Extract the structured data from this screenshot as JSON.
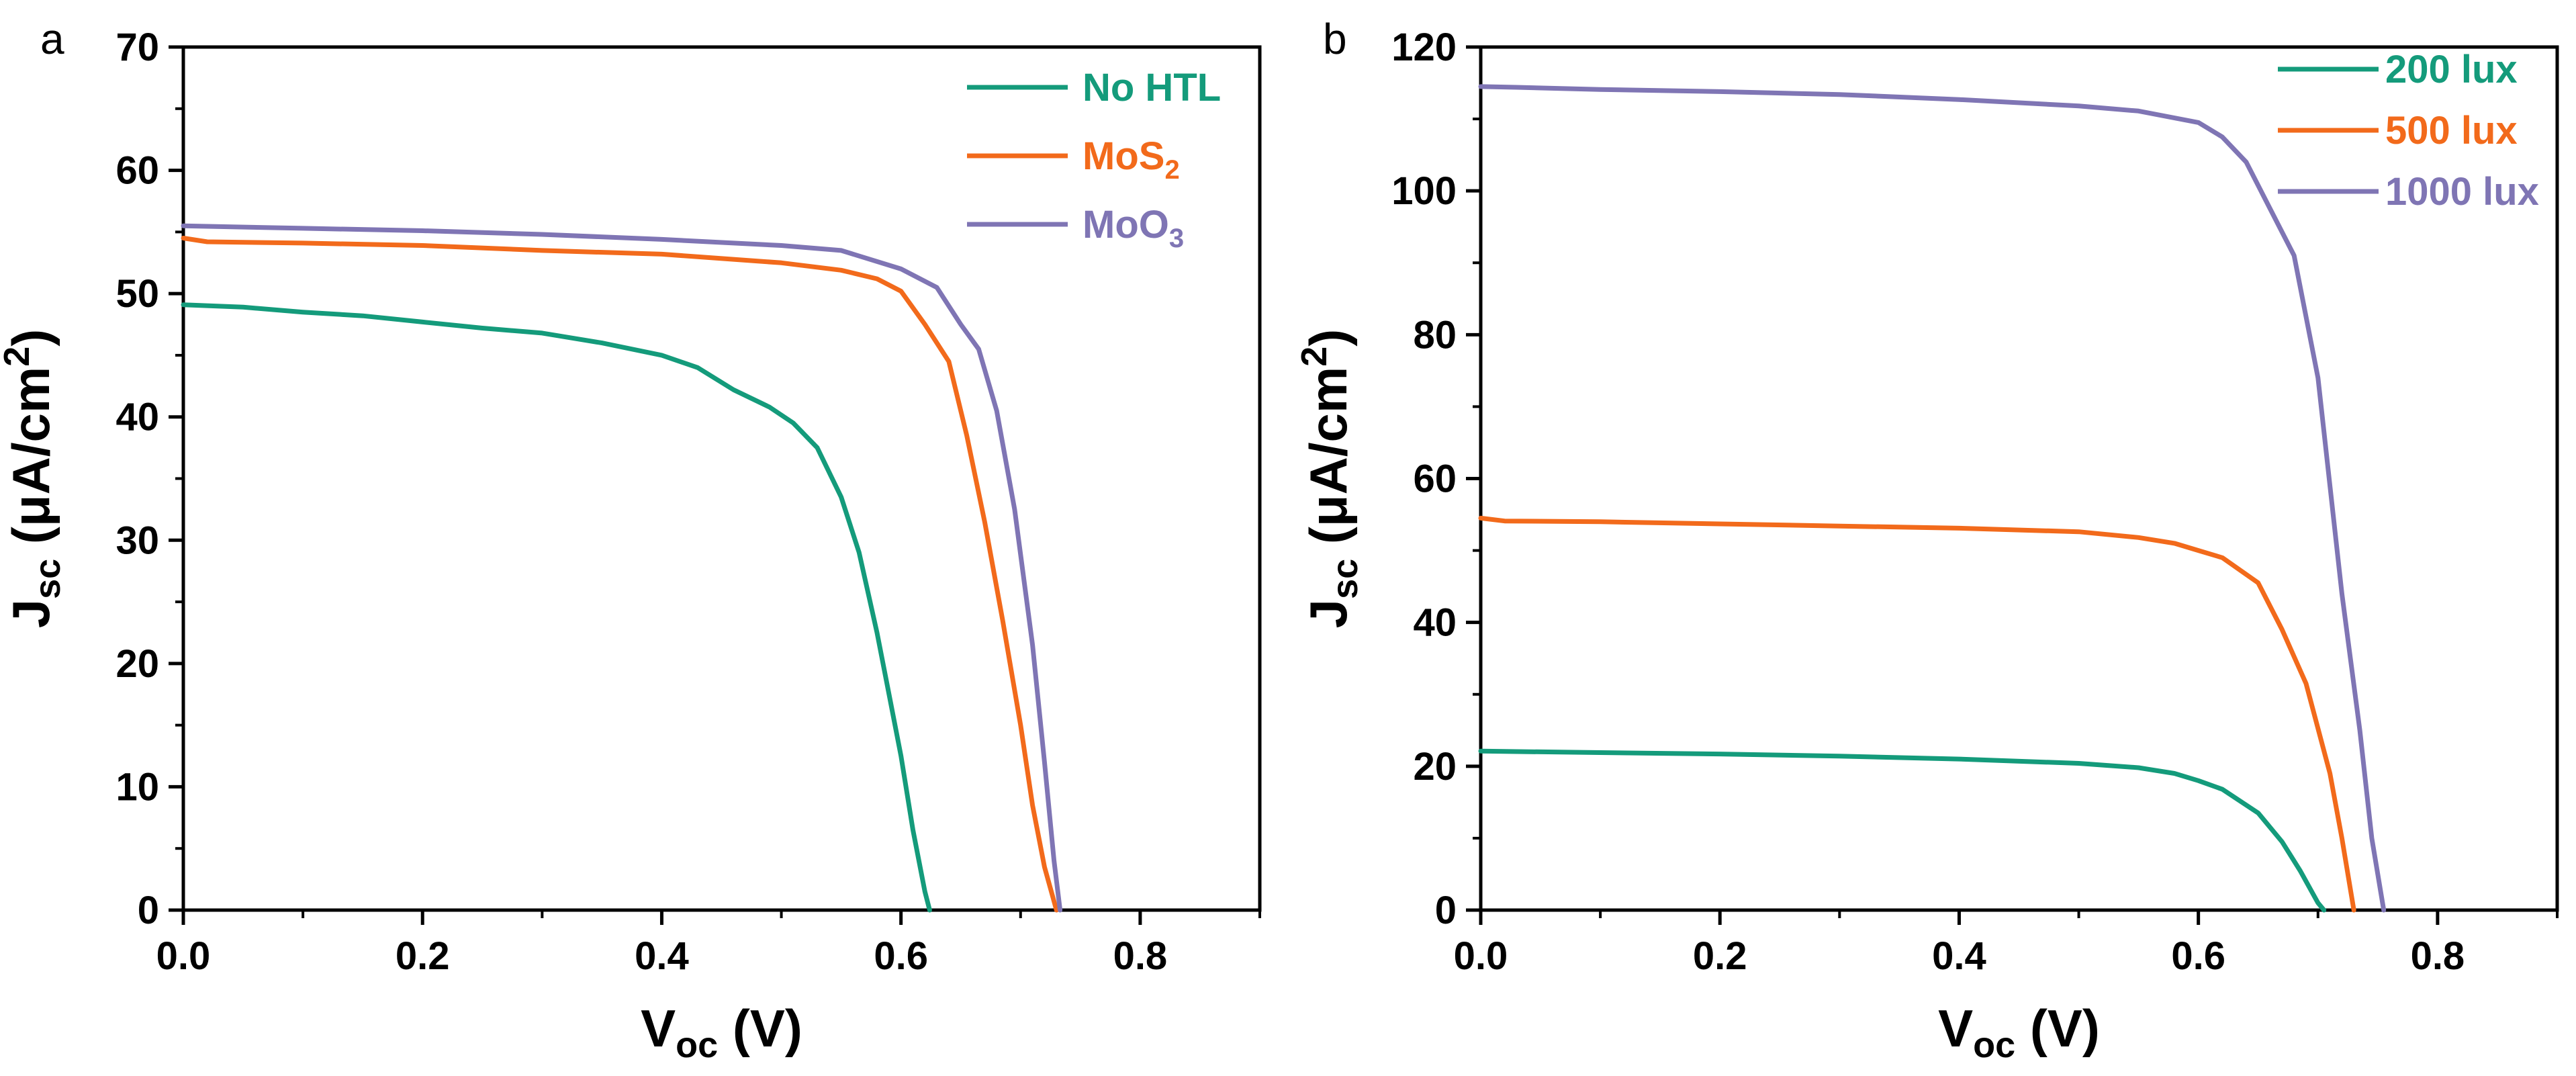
{
  "chart_data": [
    {
      "type": "line",
      "panel_label": "a",
      "xlabel": {
        "main": "V",
        "sub": "oc",
        "rest": " (V)"
      },
      "ylabel": {
        "main": "J",
        "sub": "sc",
        "rest": " (μA/cm",
        "sup": "2",
        "end": ")"
      },
      "xlim": [
        0,
        0.9
      ],
      "ylim": [
        0,
        70
      ],
      "xticks": [
        "0.0",
        "0.2",
        "0.4",
        "0.6",
        "0.8"
      ],
      "yticks": [
        "0",
        "10",
        "20",
        "30",
        "40",
        "50",
        "60",
        "70"
      ],
      "legend_position": "top-right",
      "series": [
        {
          "name": "No HTL",
          "name_sub": "",
          "color": "#149b7b",
          "x": [
            0,
            0.05,
            0.1,
            0.15,
            0.2,
            0.25,
            0.3,
            0.35,
            0.4,
            0.43,
            0.46,
            0.49,
            0.51,
            0.53,
            0.55,
            0.565,
            0.58,
            0.59,
            0.6,
            0.61,
            0.62,
            0.624
          ],
          "y": [
            49.1,
            48.9,
            48.5,
            48.2,
            47.7,
            47.2,
            46.8,
            46.0,
            45.0,
            44.0,
            42.2,
            40.8,
            39.5,
            37.5,
            33.5,
            29.0,
            22.5,
            17.5,
            12.5,
            6.5,
            1.5,
            0
          ]
        },
        {
          "name": "MoS",
          "name_sub": "2",
          "color": "#f26a1b",
          "x": [
            0,
            0.02,
            0.1,
            0.2,
            0.3,
            0.4,
            0.5,
            0.55,
            0.58,
            0.6,
            0.62,
            0.64,
            0.655,
            0.67,
            0.685,
            0.7,
            0.71,
            0.72,
            0.73
          ],
          "y": [
            54.5,
            54.2,
            54.1,
            53.9,
            53.5,
            53.2,
            52.5,
            51.9,
            51.2,
            50.2,
            47.5,
            44.5,
            38.5,
            31.5,
            23.5,
            15.0,
            8.5,
            3.5,
            0
          ]
        },
        {
          "name": "MoO",
          "name_sub": "3",
          "color": "#7f75b4",
          "x": [
            0,
            0.1,
            0.2,
            0.3,
            0.4,
            0.5,
            0.55,
            0.6,
            0.63,
            0.65,
            0.665,
            0.68,
            0.695,
            0.71,
            0.72,
            0.728,
            0.733
          ],
          "y": [
            55.5,
            55.3,
            55.1,
            54.8,
            54.4,
            53.9,
            53.5,
            52.0,
            50.5,
            47.5,
            45.5,
            40.5,
            32.5,
            21.5,
            12.0,
            4.0,
            0
          ]
        }
      ]
    },
    {
      "type": "line",
      "panel_label": "b",
      "xlabel": {
        "main": "V",
        "sub": "oc",
        "rest": " (V)"
      },
      "ylabel": {
        "main": "J",
        "sub": "sc",
        "rest": " (μA/cm",
        "sup": "2",
        "end": ")"
      },
      "xlim": [
        0,
        0.9
      ],
      "ylim": [
        0,
        120
      ],
      "xticks": [
        "0.0",
        "0.2",
        "0.4",
        "0.6",
        "0.8"
      ],
      "yticks": [
        "0",
        "20",
        "40",
        "60",
        "80",
        "100",
        "120"
      ],
      "legend_position": "top-right",
      "series": [
        {
          "name": "200 lux",
          "name_sub": "",
          "color": "#149b7b",
          "x": [
            0,
            0.1,
            0.2,
            0.3,
            0.4,
            0.5,
            0.55,
            0.58,
            0.6,
            0.62,
            0.65,
            0.67,
            0.685,
            0.7,
            0.705
          ],
          "y": [
            22.1,
            21.9,
            21.7,
            21.4,
            21.0,
            20.4,
            19.8,
            19.0,
            18.0,
            16.8,
            13.5,
            9.5,
            5.5,
            1.0,
            0
          ]
        },
        {
          "name": "500 lux",
          "name_sub": "",
          "color": "#f26a1b",
          "x": [
            0,
            0.02,
            0.1,
            0.2,
            0.3,
            0.4,
            0.5,
            0.55,
            0.58,
            0.6,
            0.62,
            0.65,
            0.67,
            0.69,
            0.71,
            0.72,
            0.73
          ],
          "y": [
            54.5,
            54.1,
            54.0,
            53.7,
            53.4,
            53.1,
            52.6,
            51.8,
            51.0,
            50.0,
            49.0,
            45.5,
            39.0,
            31.5,
            19.0,
            10.0,
            0
          ]
        },
        {
          "name": "1000 lux",
          "name_sub": "",
          "color": "#7f75b4",
          "x": [
            0,
            0.03,
            0.1,
            0.2,
            0.3,
            0.4,
            0.5,
            0.55,
            0.6,
            0.62,
            0.64,
            0.66,
            0.68,
            0.7,
            0.72,
            0.735,
            0.745,
            0.755
          ],
          "y": [
            114.5,
            114.4,
            114.1,
            113.8,
            113.4,
            112.7,
            111.8,
            111.1,
            109.5,
            107.5,
            104.0,
            97.5,
            91.0,
            74.0,
            44.0,
            25.0,
            10.0,
            0
          ]
        }
      ]
    }
  ]
}
